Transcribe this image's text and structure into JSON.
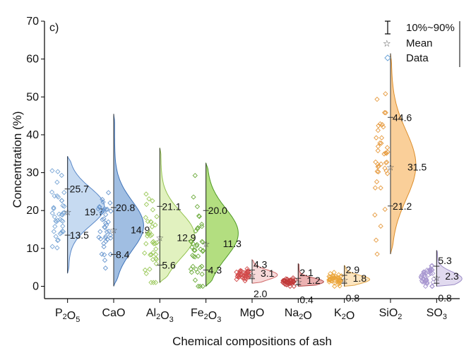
{
  "chart_data": {
    "type": "violin",
    "panel_label": "c)",
    "title": "",
    "xlabel": "Chemical compositions of ash",
    "ylabel": "Concentration (%)",
    "ylim": [
      0,
      70
    ],
    "yticks": [
      0,
      10,
      20,
      30,
      40,
      50,
      60,
      70
    ],
    "grid": false,
    "legend_position": "top-right",
    "legend": [
      {
        "symbol": "range-bar",
        "label": "10%~90%"
      },
      {
        "symbol": "star",
        "label": "Mean"
      },
      {
        "symbol": "diamond",
        "label": "Data"
      }
    ],
    "categories": [
      {
        "base": "P",
        "sub1": "2",
        "mid": "O",
        "sub2": "5",
        "color": "#bcd4ee",
        "edge": "#5a88c8",
        "point": "#7ba7d6",
        "p10": 13.5,
        "mean": 19.7,
        "p90": 25.7,
        "min": 3.5,
        "max": 34.3,
        "peak": 21.0,
        "width": 0.8,
        "spread": 5.0
      },
      {
        "base": "CaO",
        "sub1": "",
        "mid": "",
        "sub2": "",
        "color": "#8fb3dd",
        "edge": "#3f73b8",
        "point": "#6b98cf",
        "p10": 8.4,
        "mean": 14.9,
        "p90": 20.8,
        "min": 0.0,
        "max": 45.5,
        "peak": 16.0,
        "width": 0.65,
        "spread": 6.5
      },
      {
        "base": "Al",
        "sub1": "2",
        "mid": "O",
        "sub2": "3",
        "color": "#dcefb4",
        "edge": "#93c24f",
        "point": "#9cc95c",
        "p10": 5.6,
        "mean": 12.9,
        "p90": 21.1,
        "min": 1.0,
        "max": 36.5,
        "peak": 13.5,
        "width": 0.75,
        "spread": 6.0
      },
      {
        "base": "Fe",
        "sub1": "2",
        "mid": "O",
        "sub2": "3",
        "color": "#a6d86a",
        "edge": "#4f9a25",
        "point": "#6cab3b",
        "p10": 4.3,
        "mean": 11.3,
        "p90": 20.0,
        "min": 0.0,
        "max": 32.5,
        "peak": 14.0,
        "width": 0.7,
        "spread": 6.5
      },
      {
        "base": "MgO",
        "sub1": "",
        "mid": "",
        "sub2": "",
        "color": "#f6d3d3",
        "edge": "#d06a6a",
        "point": "#d24b4b",
        "p10": 2.0,
        "mean": 3.1,
        "p90": 4.3,
        "min": 0.8,
        "max": 7.0,
        "peak": 3.0,
        "width": 0.55,
        "spread": 1.3
      },
      {
        "base": "Na",
        "sub1": "2",
        "mid": "O",
        "sub2": "",
        "color": "#e8a3a3",
        "edge": "#b04848",
        "point": "#c23b3b",
        "p10": 0.4,
        "mean": 1.2,
        "p90": 2.1,
        "min": 0.0,
        "max": 6.0,
        "peak": 1.2,
        "width": 0.55,
        "spread": 1.0
      },
      {
        "base": "K",
        "sub1": "2",
        "mid": "O",
        "sub2": "",
        "color": "#fbe1b5",
        "edge": "#e0a64a",
        "point": "#eba53a",
        "p10": 0.8,
        "mean": 1.8,
        "p90": 2.9,
        "min": 0.0,
        "max": 5.5,
        "peak": 1.8,
        "width": 0.55,
        "spread": 1.1
      },
      {
        "base": "Si",
        "sub1": "",
        "mid": "O",
        "sub2": "2",
        "color": "#f9c787",
        "edge": "#dc8e2c",
        "point": "#e69a3e",
        "p10": 21.2,
        "mean": 31.5,
        "p90": 44.6,
        "min": 8.5,
        "max": 61.5,
        "peak": 32.0,
        "width": 0.55,
        "spread": 9.0
      },
      {
        "base": "SO",
        "sub1": "",
        "mid": "",
        "sub2": "3",
        "color": "#dcd4ec",
        "edge": "#9c8cc6",
        "point": "#a897d0",
        "p10": 0.8,
        "mean": 2.3,
        "p90": 5.3,
        "min": 0.0,
        "max": 9.5,
        "peak": 2.0,
        "width": 0.55,
        "spread": 1.8
      }
    ]
  }
}
